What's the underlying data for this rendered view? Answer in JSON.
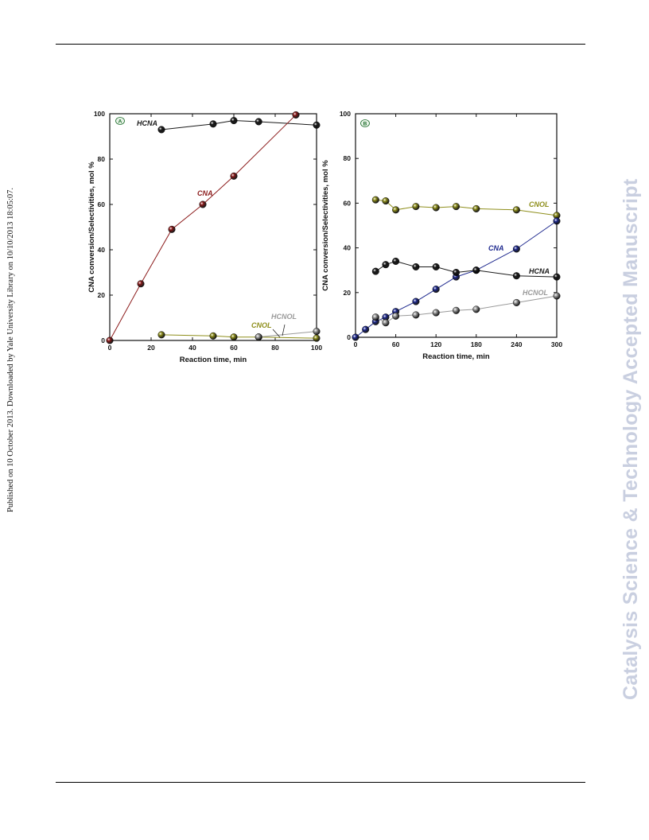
{
  "side_note": "Published on 10 October 2013. Downloaded by Yale University Library on 10/10/2013 18:05:07.",
  "watermark": "Catalysis Science & Technology Accepted Manuscript",
  "colors": {
    "HCNA": "#1a1a1a",
    "CNA_A": "#8c1c1c",
    "CNA_B": "#1f2a8f",
    "CNOL": "#8f8f1c",
    "HCNOL": "#9a9a9a",
    "watermark": "#c9cfe0"
  },
  "chart_data": [
    {
      "type": "line",
      "panel_label": "A",
      "xlabel": "Reaction time, min",
      "ylabel": "CNA conversion/Selectivities, mol %",
      "xlim": [
        0,
        100
      ],
      "ylim": [
        0,
        100
      ],
      "xticks": [
        0,
        20,
        40,
        60,
        80,
        100
      ],
      "yticks": [
        0,
        20,
        40,
        60,
        80,
        100
      ],
      "series": [
        {
          "name": "HCNA",
          "color": "#1a1a1a",
          "x": [
            25,
            50,
            60,
            72,
            100
          ],
          "y": [
            93,
            95.5,
            97,
            96.5,
            95
          ]
        },
        {
          "name": "CNA",
          "color": "#8c1c1c",
          "x": [
            0,
            15,
            30,
            45,
            60,
            90
          ],
          "y": [
            0,
            25,
            49,
            60,
            72.5,
            99.5
          ]
        },
        {
          "name": "CNOL",
          "color": "#8f8f1c",
          "x": [
            25,
            50,
            60,
            72,
            100
          ],
          "y": [
            2.5,
            2,
            1.5,
            1.5,
            1
          ]
        },
        {
          "name": "HCNOL",
          "color": "#9a9a9a",
          "x": [
            72,
            100
          ],
          "y": [
            1.5,
            4
          ]
        }
      ]
    },
    {
      "type": "line",
      "panel_label": "B",
      "xlabel": "Reaction time, min",
      "ylabel": "CNA conversion/Selectivities, mol %",
      "xlim": [
        0,
        300
      ],
      "ylim": [
        0,
        100
      ],
      "xticks": [
        0,
        60,
        120,
        180,
        240,
        300
      ],
      "yticks": [
        0,
        20,
        40,
        60,
        80,
        100
      ],
      "series": [
        {
          "name": "CNOL",
          "color": "#8f8f1c",
          "x": [
            30,
            45,
            60,
            90,
            120,
            150,
            180,
            240,
            300
          ],
          "y": [
            61.5,
            61,
            57,
            58.5,
            58,
            58.5,
            57.5,
            57,
            54.5
          ]
        },
        {
          "name": "CNA",
          "color": "#1f2a8f",
          "x": [
            0,
            15,
            30,
            45,
            60,
            90,
            120,
            150,
            180,
            240,
            300
          ],
          "y": [
            0,
            3.5,
            7,
            9,
            11.5,
            16,
            21.5,
            27,
            30,
            39.5,
            52
          ]
        },
        {
          "name": "HCNA",
          "color": "#1a1a1a",
          "x": [
            30,
            45,
            60,
            90,
            120,
            150,
            180,
            240,
            300
          ],
          "y": [
            29.5,
            32.5,
            34,
            31.5,
            31.5,
            29,
            30,
            27.5,
            27
          ]
        },
        {
          "name": "HCNOL",
          "color": "#9a9a9a",
          "x": [
            30,
            45,
            60,
            90,
            120,
            150,
            180,
            240,
            300
          ],
          "y": [
            9,
            6.5,
            9.5,
            10,
            11,
            12,
            12.5,
            15.5,
            18.5
          ]
        }
      ]
    }
  ]
}
